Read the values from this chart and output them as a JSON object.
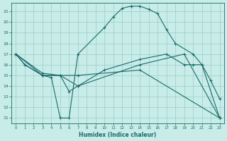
{
  "xlabel": "Humidex (Indice chaleur)",
  "bg_color": "#c8ece8",
  "grid_color": "#99cccc",
  "line_color": "#1a6b6b",
  "xlim": [
    -0.5,
    23.5
  ],
  "ylim": [
    10.5,
    21.8
  ],
  "xticks": [
    0,
    1,
    2,
    3,
    4,
    5,
    6,
    7,
    8,
    9,
    10,
    11,
    12,
    13,
    14,
    15,
    16,
    17,
    18,
    19,
    20,
    21,
    22,
    23
  ],
  "yticks": [
    11,
    12,
    13,
    14,
    15,
    16,
    17,
    18,
    19,
    20,
    21
  ],
  "line1_x": [
    0,
    1,
    3,
    4,
    5,
    6,
    7,
    10,
    11,
    12,
    13,
    14,
    15,
    16,
    17,
    18,
    20,
    21,
    22,
    23
  ],
  "line1_y": [
    17,
    16,
    15,
    14.8,
    11,
    11,
    17,
    19.5,
    20.5,
    21.3,
    21.5,
    21.5,
    21.2,
    20.8,
    19.3,
    18,
    17,
    16,
    14.5,
    12.8
  ],
  "line2_x": [
    0,
    1,
    3,
    5,
    6,
    7,
    10,
    14,
    17,
    19,
    20,
    21,
    23
  ],
  "line2_y": [
    17,
    16,
    15,
    15,
    13.5,
    14,
    15.5,
    16.5,
    17,
    16,
    16,
    16,
    11
  ],
  "line3_x": [
    0,
    3,
    5,
    7,
    14,
    19,
    23
  ],
  "line3_y": [
    17,
    15.2,
    15,
    14,
    16,
    17,
    11
  ],
  "line4_x": [
    0,
    3,
    7,
    14,
    23
  ],
  "line4_y": [
    17,
    15,
    15,
    15.5,
    11
  ]
}
